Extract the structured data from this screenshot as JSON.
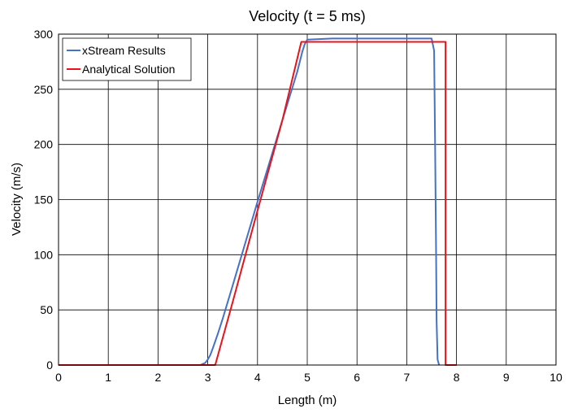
{
  "chart_data": {
    "type": "line",
    "title": "Velocity (t = 5 ms)",
    "xlabel": "Length (m)",
    "ylabel": "Velocity (m/s)",
    "xlim": [
      0,
      10
    ],
    "ylim": [
      0,
      300
    ],
    "xticks": [
      0,
      1,
      2,
      3,
      4,
      5,
      6,
      7,
      8,
      9,
      10
    ],
    "yticks": [
      0,
      50,
      100,
      150,
      200,
      250,
      300
    ],
    "grid": true,
    "legend_position": "top-left",
    "series": [
      {
        "name": "xStream Results",
        "color": "#4472C4",
        "x": [
          0,
          2.85,
          2.9,
          2.95,
          3.0,
          3.05,
          3.1,
          3.2,
          3.3,
          3.5,
          4.0,
          4.5,
          4.8,
          4.9,
          4.95,
          5.0,
          5.5,
          6.0,
          7.0,
          7.5,
          7.55,
          7.57,
          7.59,
          7.6,
          7.62,
          7.65
        ],
        "y": [
          0,
          0,
          1,
          2,
          5,
          9,
          15,
          28,
          42,
          72,
          148,
          222,
          266,
          284,
          291,
          295,
          296,
          296,
          296,
          296,
          285,
          200,
          100,
          40,
          5,
          0
        ]
      },
      {
        "name": "Analytical Solution",
        "color": "#E8141B",
        "x": [
          0,
          3.1,
          3.15,
          3.5,
          4.0,
          4.5,
          4.88,
          4.9,
          5.0,
          6.0,
          7.0,
          7.78,
          7.78,
          8.0
        ],
        "y": [
          0,
          0,
          0,
          57,
          140,
          222,
          293,
          293,
          293,
          293,
          293,
          293,
          0,
          0
        ]
      }
    ]
  }
}
